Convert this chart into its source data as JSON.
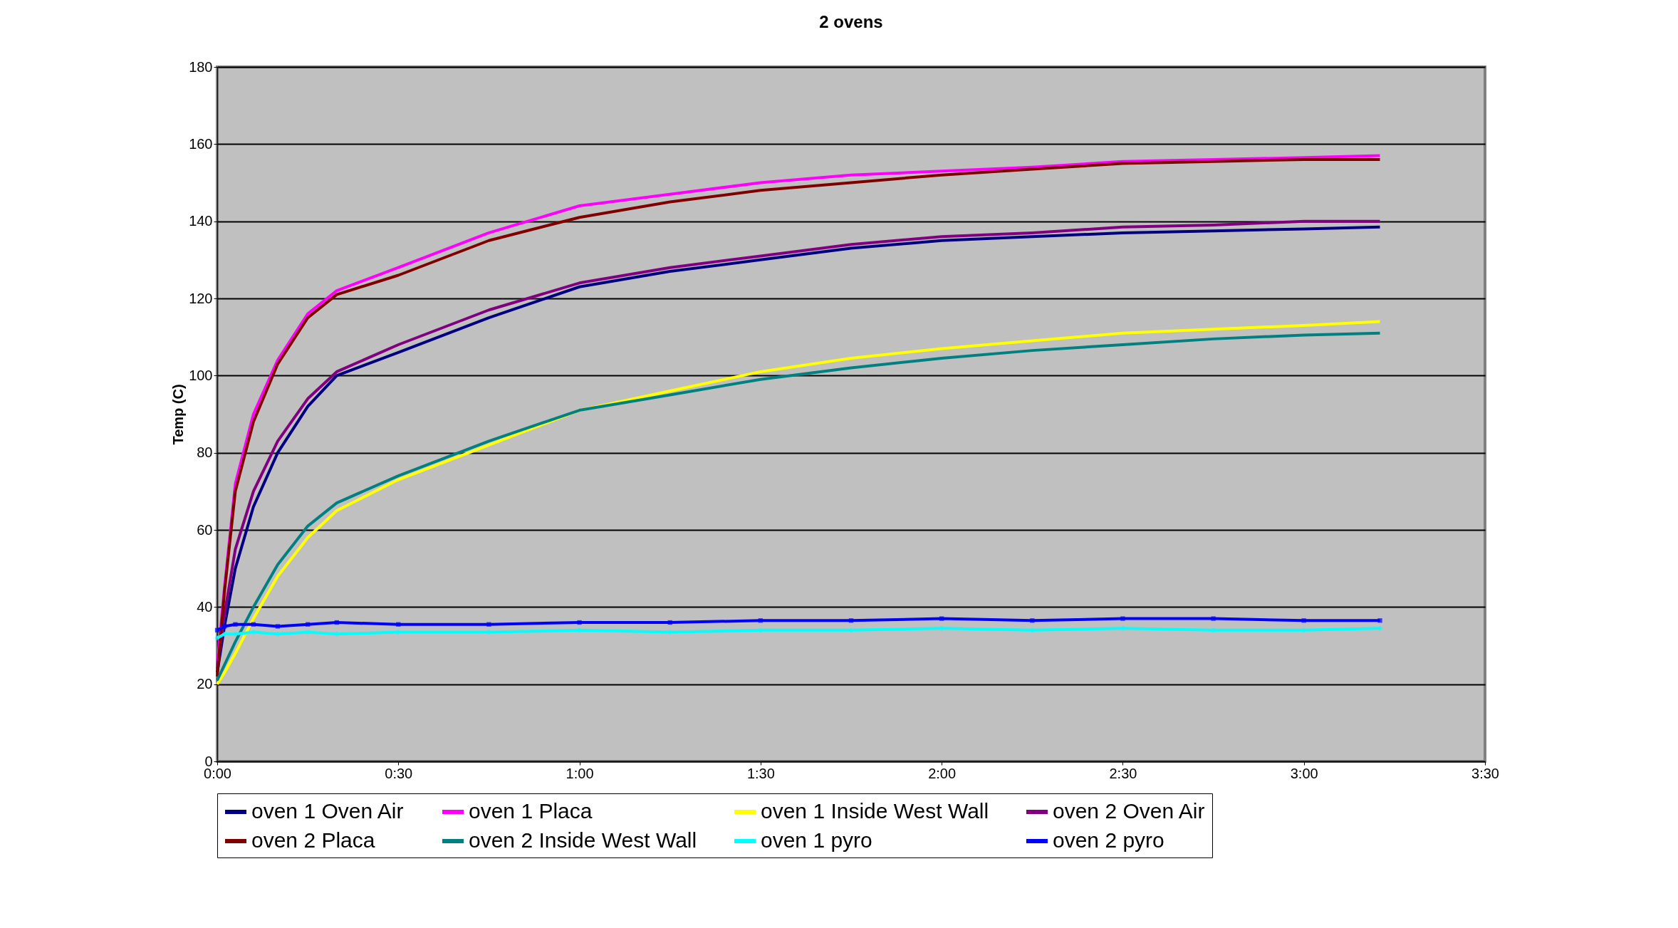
{
  "chart_data": {
    "type": "line",
    "title": "2 ovens",
    "ylabel": "Temp (C)",
    "x": [
      0,
      0.02,
      0.05,
      0.1,
      0.167,
      0.25,
      0.33,
      0.5,
      0.75,
      1.0,
      1.25,
      1.5,
      1.75,
      2.0,
      2.25,
      2.5,
      2.75,
      3.0,
      3.21
    ],
    "xlim": [
      0,
      3.5
    ],
    "xticks": [
      {
        "value": 0,
        "label": "0:00"
      },
      {
        "value": 0.5,
        "label": "0:30"
      },
      {
        "value": 1,
        "label": "1:00"
      },
      {
        "value": 1.5,
        "label": "1:30"
      },
      {
        "value": 2,
        "label": "2:00"
      },
      {
        "value": 2.5,
        "label": "2:30"
      },
      {
        "value": 3,
        "label": "3:00"
      },
      {
        "value": 3.5,
        "label": "3:30"
      }
    ],
    "ylim": [
      0,
      180
    ],
    "yticks": [
      0,
      20,
      40,
      60,
      80,
      100,
      120,
      140,
      160,
      180
    ],
    "grid": "y",
    "legend": "bottom",
    "line_style": "solid",
    "series": [
      {
        "name": "oven 1 Oven Air",
        "color": "#000080",
        "marker": "none",
        "values": [
          23,
          35,
          50,
          66,
          80,
          92,
          100,
          106,
          115,
          123,
          127,
          130,
          133,
          135,
          136,
          137,
          137.5,
          138,
          138.5
        ]
      },
      {
        "name": "oven 1 Placa",
        "color": "#ff00ff",
        "values": [
          25,
          45,
          72,
          90,
          104,
          116,
          122,
          128,
          137,
          144,
          147,
          150,
          152,
          153,
          154,
          155.5,
          156,
          156.5,
          157
        ]
      },
      {
        "name": "oven 1 Inside West Wall",
        "color": "#ffff00",
        "values": [
          20,
          23,
          28,
          37,
          48,
          58,
          65,
          73,
          82,
          91,
          96,
          101,
          104.5,
          107,
          109,
          111,
          112,
          113,
          114
        ]
      },
      {
        "name": "oven 2 Oven Air",
        "color": "#800080",
        "values": [
          24,
          38,
          55,
          70,
          83,
          94,
          101,
          108,
          117,
          124,
          128,
          131,
          134,
          136,
          137,
          138.5,
          139,
          140,
          140
        ]
      },
      {
        "name": "oven 2 Placa",
        "color": "#800000",
        "values": [
          22,
          44,
          70,
          88,
          103,
          115,
          121,
          126,
          135,
          141,
          145,
          148,
          150,
          152,
          153.5,
          155,
          155.5,
          156,
          156
        ]
      },
      {
        "name": "oven 2 Inside West Wall",
        "color": "#008080",
        "values": [
          21,
          25,
          31,
          40,
          51,
          61,
          67,
          74,
          83,
          91,
          95,
          99,
          102,
          104.5,
          106.5,
          108,
          109.5,
          110.5,
          111
        ]
      },
      {
        "name": "oven 1 pyro",
        "color": "#00ffff",
        "marker": "cross",
        "values": [
          32,
          33,
          33,
          33.5,
          33,
          33.5,
          33,
          33.5,
          33.5,
          34,
          33.5,
          34,
          34,
          34.5,
          34,
          34.5,
          34,
          34,
          34.5
        ]
      },
      {
        "name": "oven 2 pyro",
        "color": "#0000ff",
        "marker": "square",
        "values": [
          34,
          35,
          35.5,
          35.5,
          35,
          35.5,
          36,
          35.5,
          35.5,
          36,
          36,
          36.5,
          36.5,
          37,
          36.5,
          37,
          37,
          36.5,
          36.5
        ]
      }
    ]
  }
}
